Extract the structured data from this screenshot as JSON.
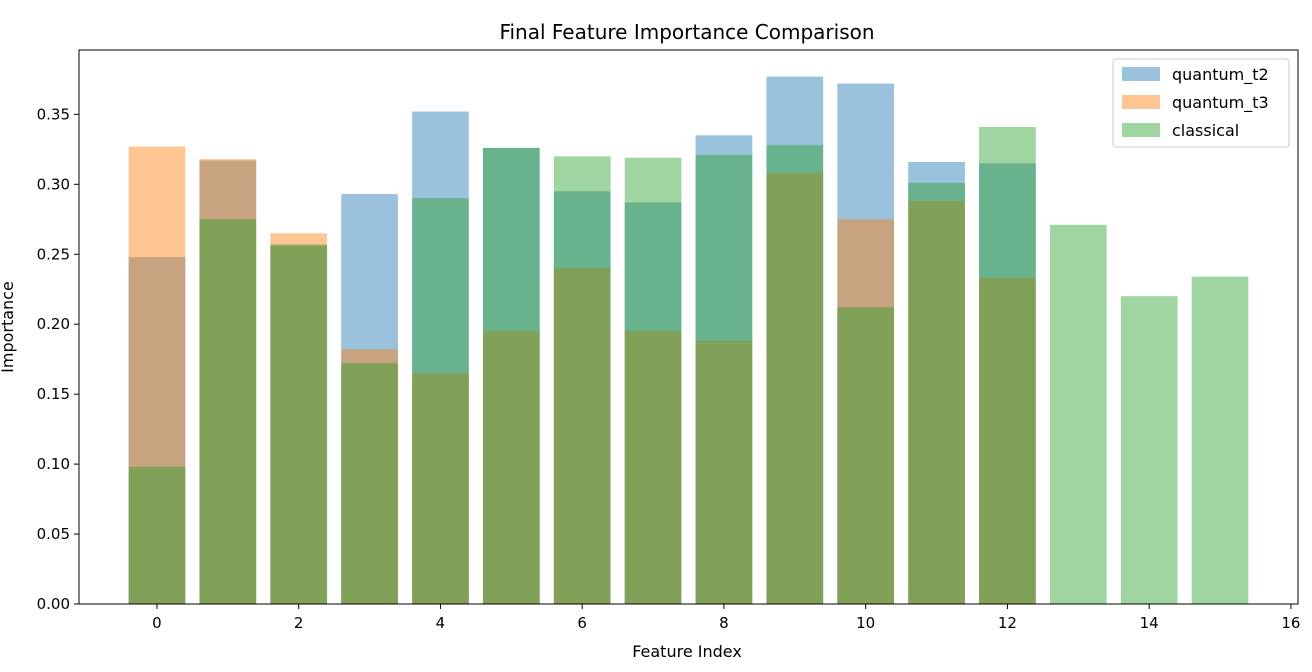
{
  "chart_data": {
    "type": "bar",
    "title": "Final Feature Importance Comparison",
    "xlabel": "Feature Index",
    "ylabel": "Importance",
    "xlim": [
      -1.1,
      16.1
    ],
    "ylim": [
      0,
      0.396
    ],
    "xticks": [
      0,
      2,
      4,
      6,
      8,
      10,
      12,
      14,
      16
    ],
    "xtick_labels": [
      "0",
      "2",
      "4",
      "6",
      "8",
      "10",
      "12",
      "14",
      "16"
    ],
    "yticks": [
      0.0,
      0.05,
      0.1,
      0.15,
      0.2,
      0.25,
      0.3,
      0.35
    ],
    "ytick_labels": [
      "0.00",
      "0.05",
      "0.10",
      "0.15",
      "0.20",
      "0.25",
      "0.30",
      "0.35"
    ],
    "grid": false,
    "legend_position": "top-right",
    "bar_alpha": 0.45,
    "series": [
      {
        "name": "quantum_t2",
        "color": "#1f77b4",
        "x": [
          0,
          1,
          2,
          3,
          4,
          5,
          6,
          7,
          8,
          9,
          10,
          11,
          12
        ],
        "values": [
          0.248,
          0.317,
          0.256,
          0.293,
          0.352,
          0.326,
          0.295,
          0.287,
          0.335,
          0.377,
          0.372,
          0.316,
          0.315
        ]
      },
      {
        "name": "quantum_t3",
        "color": "#ff7f0e",
        "x": [
          0,
          1,
          2,
          3,
          4,
          5,
          6,
          7,
          8,
          9,
          10,
          11,
          12
        ],
        "values": [
          0.327,
          0.318,
          0.265,
          0.182,
          0.165,
          0.195,
          0.24,
          0.195,
          0.188,
          0.308,
          0.275,
          0.288,
          0.233
        ]
      },
      {
        "name": "classical",
        "color": "#2ca02c",
        "x": [
          0,
          1,
          2,
          3,
          4,
          5,
          6,
          7,
          8,
          9,
          10,
          11,
          12,
          13,
          14,
          15
        ],
        "values": [
          0.098,
          0.275,
          0.257,
          0.172,
          0.29,
          0.326,
          0.32,
          0.319,
          0.321,
          0.328,
          0.212,
          0.301,
          0.341,
          0.271,
          0.22,
          0.234
        ]
      }
    ]
  }
}
